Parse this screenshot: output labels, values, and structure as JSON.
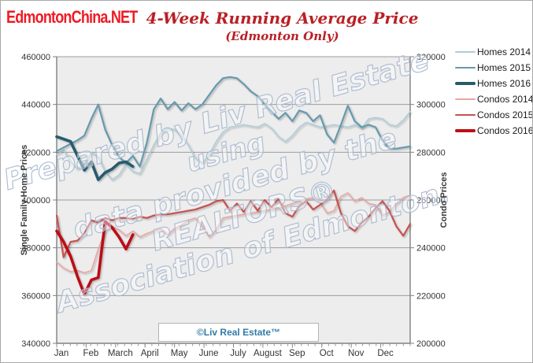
{
  "page": {
    "logo_text": "EdmontonChina.NET"
  },
  "header": {
    "title": "4-Week Running Average Price",
    "subtitle": "(Edmonton Only)",
    "title_color": "#b92025"
  },
  "watermark": {
    "lines": [
      "Prepared by Liv Real Estate",
      "using",
      "data provided by the",
      "REALTORS®",
      "Association of Edmonton."
    ],
    "stroke_color": "#a9b9d0"
  },
  "footer_box": {
    "label": "©Liv Real Estate™"
  },
  "chart_data": {
    "type": "line",
    "title": "4-Week Running Average Price (Edmonton Only)",
    "grid": "horizontal",
    "legend_position": "right",
    "weeks": 52,
    "plot_bg": "#ededed",
    "grid_color": "#9b9b9b",
    "axis_color": "#808080",
    "tick_label_color": "#333333",
    "x_axis": {
      "months": [
        "Jan",
        "Feb",
        "March",
        "April",
        "May",
        "June",
        "July",
        "August",
        "Sep",
        "Oct",
        "Nov",
        "Dec"
      ]
    },
    "left_axis": {
      "label": "Single Family Home Prices",
      "min": 340000,
      "max": 460000,
      "tick_step": 20000,
      "ticks": [
        460000,
        440000,
        420000,
        400000,
        380000,
        360000,
        340000
      ]
    },
    "right_axis": {
      "label": "Condo Prices",
      "min": 200000,
      "max": 320000,
      "tick_step": 20000,
      "ticks": [
        320000,
        300000,
        280000,
        260000,
        240000,
        220000,
        200000
      ]
    },
    "series": [
      {
        "name": "Homes 2014",
        "axis": "left",
        "color": "#adcdd8",
        "width": 1.6,
        "values": [
          419000,
          421000,
          416000,
          413000,
          415000,
          420000,
          418000,
          412000,
          408500,
          410500,
          415000,
          412000,
          411000,
          417000,
          423000,
          428000,
          430000,
          429500,
          427000,
          423000,
          417500,
          415500,
          419000,
          424500,
          428500,
          430500,
          431000,
          431500,
          431000,
          430500,
          432000,
          430000,
          426500,
          424500,
          427000,
          430500,
          432500,
          431500,
          430500,
          431000,
          431500,
          431000,
          430500,
          431500,
          430000,
          434000,
          434500,
          434000,
          431500,
          431000,
          433500,
          437000
        ]
      },
      {
        "name": "Homes 2015",
        "axis": "left",
        "color": "#6699ad",
        "width": 2.2,
        "values": [
          420500,
          422000,
          423500,
          425000,
          427000,
          434000,
          440000,
          429500,
          423000,
          418000,
          415500,
          418500,
          414000,
          424000,
          438000,
          442500,
          438000,
          441000,
          437500,
          440500,
          438000,
          440000,
          444000,
          448000,
          451000,
          451500,
          451000,
          448500,
          445500,
          443500,
          440000,
          437000,
          434000,
          436500,
          433000,
          437500,
          436500,
          433000,
          435500,
          427500,
          424000,
          431500,
          439500,
          433000,
          430500,
          431500,
          430500,
          425000,
          421500,
          421500,
          422000,
          422500
        ]
      },
      {
        "name": "Homes 2016",
        "axis": "left",
        "color": "#265b6d",
        "width": 3.6,
        "values": [
          426500,
          425500,
          424500,
          418500,
          412500,
          416000,
          408500,
          411500,
          413000,
          415500,
          416000,
          414000
        ]
      },
      {
        "name": "Condos 2014",
        "axis": "right",
        "color": "#e9a6a2",
        "width": 1.6,
        "values": [
          234000,
          231500,
          230000,
          230500,
          229500,
          230500,
          239500,
          247000,
          249000,
          247500,
          245000,
          247000,
          244500,
          246000,
          247000,
          248000,
          245500,
          248000,
          249500,
          251500,
          252500,
          249000,
          244500,
          247500,
          252500,
          253000,
          253500,
          254000,
          254500,
          255000,
          255500,
          256000,
          256500,
          257500,
          258500,
          259500,
          260500,
          261000,
          259000,
          254500,
          255500,
          261500,
          263000,
          259500,
          261000,
          258500,
          258000,
          253500,
          255000,
          258500,
          261000,
          262000
        ]
      },
      {
        "name": "Condos 2015",
        "axis": "right",
        "color": "#c65150",
        "width": 2.2,
        "values": [
          253500,
          236000,
          242500,
          243000,
          246000,
          251500,
          250500,
          252500,
          251500,
          252500,
          252500,
          252000,
          253000,
          252500,
          253500,
          254000,
          254000,
          254500,
          255000,
          255500,
          256000,
          257000,
          258000,
          259500,
          260000,
          255500,
          258500,
          255000,
          259500,
          255500,
          260000,
          257000,
          260500,
          254500,
          253000,
          257500,
          259500,
          256000,
          258000,
          260000,
          264000,
          254500,
          249000,
          247000,
          250500,
          253000,
          256500,
          259500,
          255500,
          249000,
          245000,
          250000
        ]
      },
      {
        "name": "Condos 2016",
        "axis": "right",
        "color": "#bb1016",
        "width": 3.6,
        "values": [
          247000,
          242500,
          236500,
          228000,
          220500,
          226500,
          227500,
          251000,
          248500,
          244500,
          239500,
          245500
        ]
      }
    ]
  }
}
